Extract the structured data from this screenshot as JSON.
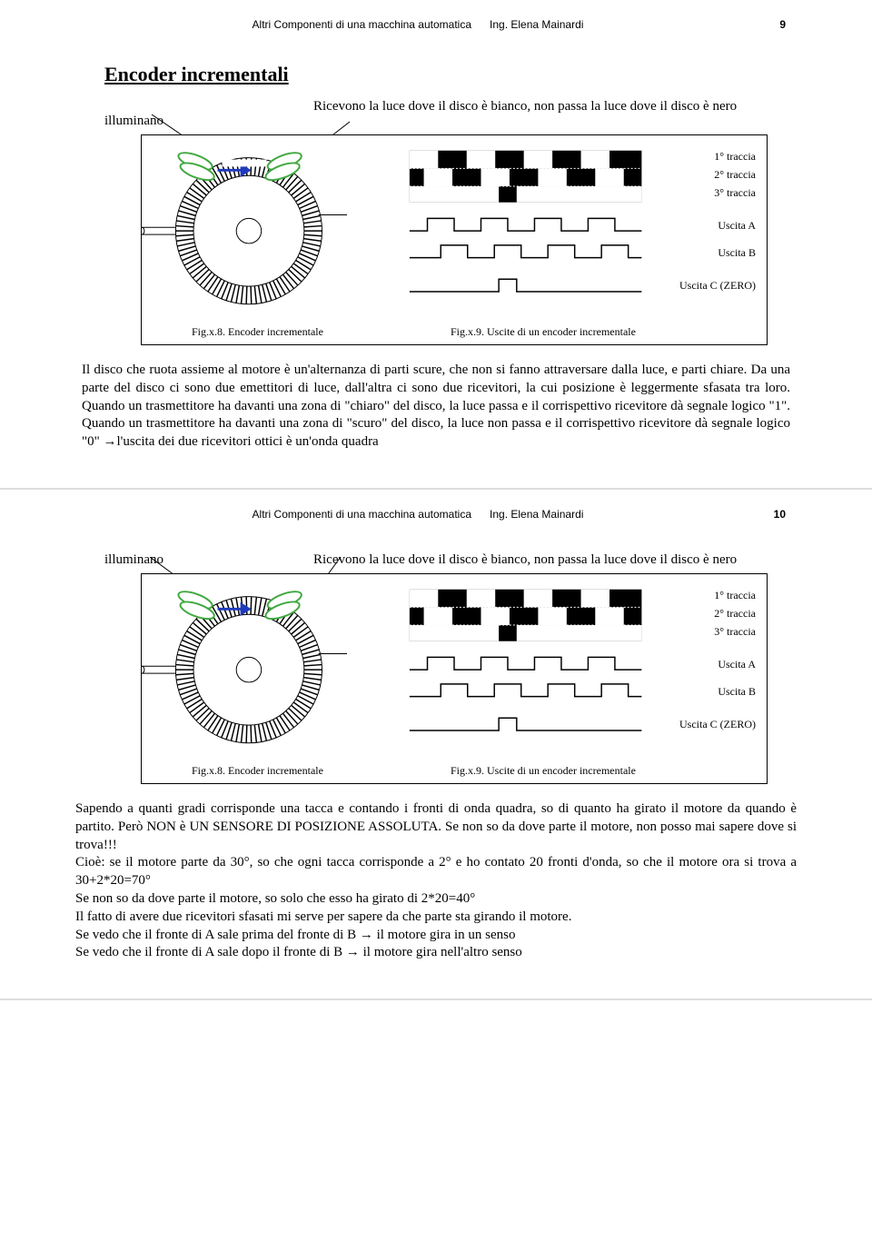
{
  "pages": [
    {
      "header": {
        "center_left": "Altri Componenti di una macchina automatica",
        "center_right": "Ing. Elena Mainardi",
        "pagenum": "9"
      },
      "title": "Encoder incrementali",
      "annotations": {
        "left": "illuminano",
        "right": "Ricevono la luce dove il disco è bianco, non passa la luce dove il disco è nero"
      },
      "figure": {
        "caption_left": "Fig.x.8. Encoder incrementale",
        "caption_right": "Fig.x.9. Uscite di un encoder incrementale",
        "track_labels": [
          "1° traccia",
          "2° traccia",
          "3° traccia",
          "Uscita A",
          "Uscita B",
          "Uscita C  (ZERO)"
        ],
        "colors": {
          "sensor": "#3fa83f",
          "arrow": "#1f3bbd",
          "border": "#000000",
          "bg": "#ffffff"
        }
      },
      "paragraph": "Il disco che ruota assieme al motore è un'alternanza di parti scure, che non si fanno attraversare dalla luce, e parti chiare. Da una parte del disco ci sono due emettitori di luce, dall'altra ci sono due ricevitori, la cui posizione è leggermente sfasata tra loro. Quando un trasmettitore ha davanti una zona di \"chiaro\" del disco, la luce passa e il corrispettivo ricevitore dà segnale logico \"1\". Quando un trasmettitore ha davanti una zona di \"scuro\" del disco, la luce non passa e il corrispettivo ricevitore dà segnale logico \"0\" →l'uscita dei due ricevitori ottici è un'onda quadra"
    },
    {
      "header": {
        "center_left": "Altri Componenti di una macchina automatica",
        "center_right": "Ing. Elena Mainardi",
        "pagenum": "10"
      },
      "annotations": {
        "left": "illuminano",
        "right": "Ricevono la luce dove il disco è bianco, non passa la luce dove il disco è nero"
      },
      "figure": {
        "caption_left": "Fig.x.8. Encoder incrementale",
        "caption_right": "Fig.x.9. Uscite di un encoder incrementale",
        "track_labels": [
          "1° traccia",
          "2° traccia",
          "3° traccia",
          "Uscita A",
          "Uscita B",
          "Uscita C  (ZERO)"
        ],
        "colors": {
          "sensor": "#3fa83f",
          "arrow": "#1f3bbd",
          "border": "#000000",
          "bg": "#ffffff"
        }
      },
      "paragraph": "Sapendo a quanti gradi corrisponde una tacca e contando i fronti di onda quadra, so di quanto ha girato il motore da quando è partito. Però NON è UN SENSORE DI POSIZIONE ASSOLUTA. Se non so da dove parte il motore, non posso mai sapere dove si trova!!!\nCioè: se il motore parte da 30°, so che ogni tacca corrisponde a 2° e ho contato 20 fronti d'onda, so che il motore ora si trova a 30+2*20=70°\nSe non so da dove parte il motore, so solo che esso ha girato di 2*20=40°\nIl fatto di avere due ricevitori sfasati mi serve per sapere da che parte sta girando il motore.\nSe vedo che il fronte di A sale prima del fronte di B → il motore gira in un senso\nSe vedo che il fronte di A sale dopo il fronte di B → il motore gira nell'altro senso"
    }
  ]
}
